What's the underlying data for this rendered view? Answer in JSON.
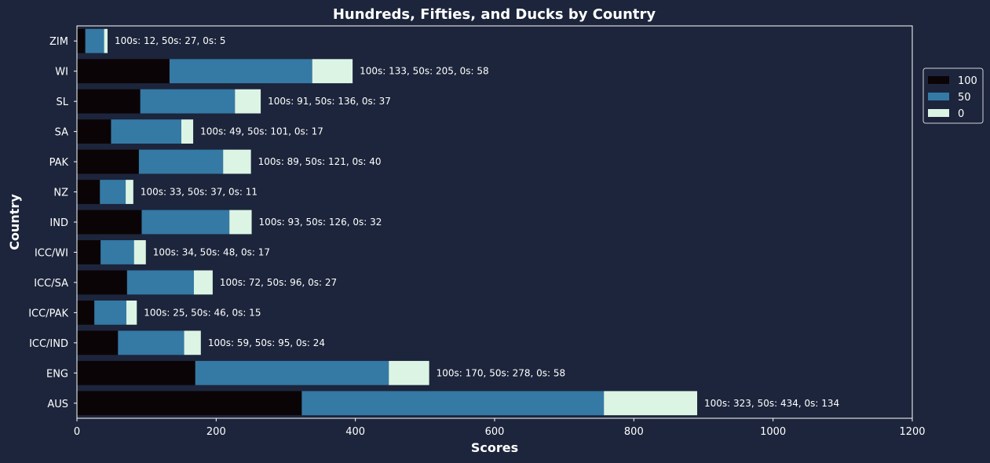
{
  "chart_data": {
    "type": "bar",
    "orientation": "horizontal",
    "stacked": true,
    "title": "Hundreds, Fifties, and Ducks by Country",
    "xlabel": "Scores",
    "ylabel": "Country",
    "xlim": [
      0,
      1200
    ],
    "xticks": [
      "0",
      "200",
      "400",
      "600",
      "800",
      "1000",
      "1200"
    ],
    "grid": false,
    "legend_position": "right",
    "categories": [
      "AUS",
      "ENG",
      "ICC/IND",
      "ICC/PAK",
      "ICC/SA",
      "ICC/WI",
      "IND",
      "NZ",
      "PAK",
      "SA",
      "SL",
      "WI",
      "ZIM"
    ],
    "series": [
      {
        "name": "100",
        "color": "#0b0406",
        "values": [
          323,
          170,
          59,
          25,
          72,
          34,
          93,
          33,
          89,
          49,
          91,
          133,
          12
        ]
      },
      {
        "name": "50",
        "color": "#3579a5",
        "values": [
          434,
          278,
          95,
          46,
          96,
          48,
          126,
          37,
          121,
          101,
          136,
          205,
          27
        ]
      },
      {
        "name": "0",
        "color": "#dcf4e4",
        "values": [
          134,
          58,
          24,
          15,
          27,
          17,
          32,
          11,
          40,
          17,
          37,
          58,
          5
        ]
      }
    ],
    "annotations": [
      "100s: 323, 50s: 434, 0s: 134",
      "100s: 170, 50s: 278, 0s: 58",
      "100s: 59, 50s: 95, 0s: 24",
      "100s: 25, 50s: 46, 0s: 15",
      "100s: 72, 50s: 96, 0s: 27",
      "100s: 34, 50s: 48, 0s: 17",
      "100s: 93, 50s: 126, 0s: 32",
      "100s: 33, 50s: 37, 0s: 11",
      "100s: 89, 50s: 121, 0s: 40",
      "100s: 49, 50s: 101, 0s: 17",
      "100s: 91, 50s: 136, 0s: 37",
      "100s: 133, 50s: 205, 0s: 58",
      "100s: 12, 50s: 27, 0s: 5"
    ]
  },
  "colors": {
    "background": "#1c253b",
    "axes": "#ffffff"
  }
}
